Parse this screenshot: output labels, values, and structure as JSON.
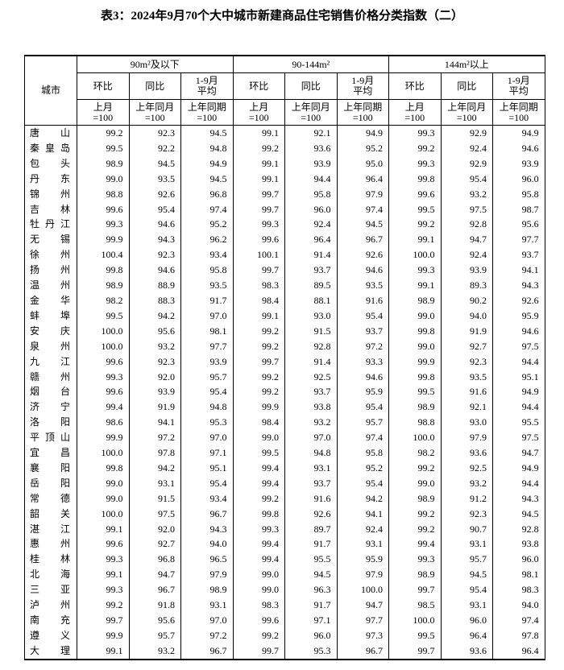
{
  "title": "表3：2024年9月70个大中城市新建商品住宅销售价格分类指数（二）",
  "city_header": "城市",
  "groups": [
    "90m²及以下",
    "90-144m²",
    "144m²以上"
  ],
  "columns": [
    "环比",
    "同比",
    "1-9月\n平均"
  ],
  "bases": [
    "上月\n=100",
    "上年同月\n=100",
    "上年同期\n=100"
  ],
  "rows": [
    [
      "唐山",
      "99.2",
      "92.3",
      "94.5",
      "99.1",
      "92.1",
      "94.9",
      "99.3",
      "92.9",
      "94.9"
    ],
    [
      "秦皇岛",
      "99.5",
      "92.2",
      "94.8",
      "99.2",
      "93.6",
      "95.2",
      "99.2",
      "92.4",
      "94.6"
    ],
    [
      "包头",
      "98.9",
      "94.5",
      "94.9",
      "99.1",
      "93.9",
      "95.0",
      "99.3",
      "92.9",
      "93.9"
    ],
    [
      "丹东",
      "99.0",
      "93.5",
      "94.5",
      "99.1",
      "94.4",
      "96.4",
      "99.8",
      "95.4",
      "96.0"
    ],
    [
      "锦州",
      "98.8",
      "92.6",
      "96.8",
      "99.7",
      "95.8",
      "97.9",
      "99.6",
      "93.2",
      "95.8"
    ],
    [
      "吉林",
      "99.6",
      "95.4",
      "97.4",
      "99.7",
      "96.0",
      "97.4",
      "99.5",
      "97.5",
      "98.7"
    ],
    [
      "牡丹江",
      "99.3",
      "94.6",
      "95.2",
      "99.3",
      "92.4",
      "94.5",
      "99.2",
      "92.8",
      "95.6"
    ],
    [
      "无锡",
      "99.9",
      "94.3",
      "96.2",
      "99.6",
      "96.4",
      "96.7",
      "99.1",
      "94.7",
      "97.7"
    ],
    [
      "徐州",
      "100.4",
      "92.3",
      "93.4",
      "100.1",
      "91.4",
      "92.6",
      "100.0",
      "92.4",
      "93.7"
    ],
    [
      "扬州",
      "99.8",
      "94.6",
      "95.8",
      "99.7",
      "93.7",
      "94.6",
      "99.3",
      "93.9",
      "94.1"
    ],
    [
      "温州",
      "98.9",
      "88.9",
      "93.5",
      "98.3",
      "89.5",
      "93.5",
      "99.1",
      "89.3",
      "94.3"
    ],
    [
      "金华",
      "98.2",
      "88.3",
      "91.7",
      "98.4",
      "88.1",
      "91.6",
      "98.9",
      "90.2",
      "92.6"
    ],
    [
      "蚌埠",
      "99.5",
      "94.2",
      "97.0",
      "99.1",
      "93.0",
      "95.4",
      "99.0",
      "94.0",
      "95.9"
    ],
    [
      "安庆",
      "100.0",
      "95.6",
      "98.1",
      "99.2",
      "91.5",
      "93.7",
      "99.8",
      "91.9",
      "94.6"
    ],
    [
      "泉州",
      "100.0",
      "93.2",
      "97.7",
      "99.2",
      "92.8",
      "97.2",
      "99.0",
      "92.7",
      "97.5"
    ],
    [
      "九江",
      "99.6",
      "92.3",
      "93.9",
      "99.7",
      "91.4",
      "93.3",
      "99.9",
      "92.3",
      "94.4"
    ],
    [
      "赣州",
      "99.3",
      "92.0",
      "95.7",
      "99.2",
      "92.5",
      "94.6",
      "99.8",
      "93.5",
      "95.1"
    ],
    [
      "烟台",
      "99.6",
      "93.9",
      "95.4",
      "99.2",
      "93.7",
      "95.9",
      "99.5",
      "91.6",
      "94.9"
    ],
    [
      "济宁",
      "99.4",
      "91.9",
      "94.8",
      "99.9",
      "93.8",
      "95.4",
      "98.9",
      "92.1",
      "94.4"
    ],
    [
      "洛阳",
      "98.6",
      "94.1",
      "95.3",
      "98.4",
      "93.2",
      "95.7",
      "98.8",
      "93.0",
      "95.5"
    ],
    [
      "平顶山",
      "99.9",
      "97.2",
      "97.0",
      "99.0",
      "97.0",
      "97.4",
      "100.0",
      "97.9",
      "97.5"
    ],
    [
      "宜昌",
      "100.0",
      "97.8",
      "97.1",
      "99.5",
      "94.8",
      "95.8",
      "98.2",
      "93.6",
      "94.7"
    ],
    [
      "襄阳",
      "99.8",
      "94.2",
      "95.1",
      "99.4",
      "93.1",
      "95.2",
      "99.2",
      "92.5",
      "94.9"
    ],
    [
      "岳阳",
      "99.0",
      "93.1",
      "95.4",
      "99.4",
      "93.7",
      "95.4",
      "99.0",
      "93.2",
      "94.4"
    ],
    [
      "常德",
      "99.0",
      "91.5",
      "93.4",
      "99.2",
      "91.6",
      "94.2",
      "98.9",
      "91.2",
      "94.3"
    ],
    [
      "韶关",
      "100.0",
      "97.5",
      "96.7",
      "99.8",
      "92.6",
      "94.1",
      "99.2",
      "92.3",
      "94.5"
    ],
    [
      "湛江",
      "99.1",
      "92.0",
      "94.3",
      "99.3",
      "89.7",
      "92.4",
      "99.2",
      "90.7",
      "92.8"
    ],
    [
      "惠州",
      "99.6",
      "92.7",
      "94.0",
      "99.4",
      "91.7",
      "93.1",
      "99.4",
      "93.1",
      "93.8"
    ],
    [
      "桂林",
      "99.3",
      "96.8",
      "96.5",
      "99.4",
      "95.5",
      "95.9",
      "99.3",
      "95.7",
      "96.0"
    ],
    [
      "北海",
      "99.1",
      "94.7",
      "97.9",
      "99.0",
      "94.5",
      "97.9",
      "98.9",
      "94.5",
      "98.1"
    ],
    [
      "三亚",
      "99.3",
      "96.7",
      "98.9",
      "99.0",
      "96.3",
      "100.0",
      "99.7",
      "95.4",
      "98.3"
    ],
    [
      "泸州",
      "99.2",
      "91.8",
      "93.1",
      "98.3",
      "91.7",
      "94.7",
      "98.5",
      "93.1",
      "94.0"
    ],
    [
      "南充",
      "99.7",
      "95.6",
      "97.0",
      "99.6",
      "97.1",
      "97.7",
      "100.0",
      "96.0",
      "97.4"
    ],
    [
      "遵义",
      "99.9",
      "95.7",
      "97.2",
      "99.2",
      "96.0",
      "97.3",
      "99.5",
      "96.4",
      "97.8"
    ],
    [
      "大理",
      "99.1",
      "93.2",
      "96.7",
      "99.7",
      "95.3",
      "96.7",
      "99.7",
      "93.6",
      "96.4"
    ]
  ]
}
